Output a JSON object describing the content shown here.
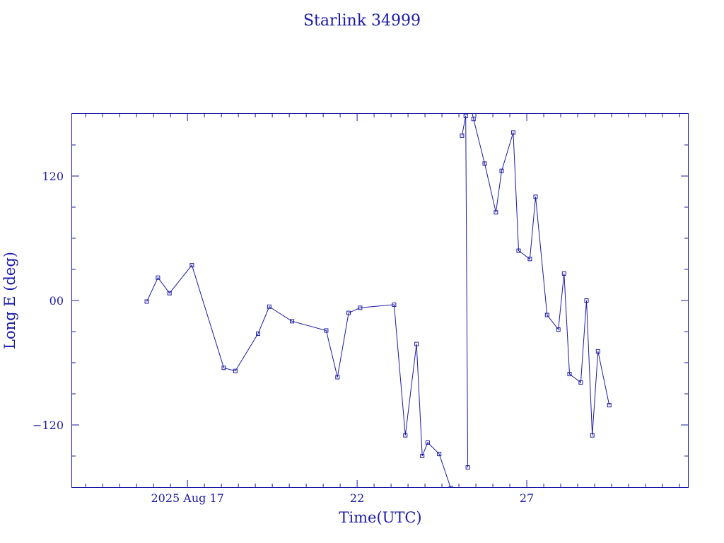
{
  "chart_data": {
    "type": "line",
    "title": "Starlink 34999",
    "xlabel": "Time(UTC)",
    "ylabel": "Long E (deg)",
    "x_tick_labels": [
      {
        "x": 16.0,
        "label": "2025 Aug 17"
      },
      {
        "x": 21.0,
        "label": "22"
      },
      {
        "x": 26.0,
        "label": "27"
      }
    ],
    "y_tick_labels": [
      {
        "y": 120,
        "label": "120"
      },
      {
        "y": 0,
        "label": "00"
      },
      {
        "y": -120,
        "label": "−120"
      }
    ],
    "xlim": [
      12.6,
      30.75
    ],
    "ylim": [
      -180,
      180
    ],
    "x_unit": "days (Aug 2025, UTC)",
    "grid": false,
    "marker": "square",
    "color": "#1a1aa6",
    "points": [
      {
        "x": 14.8,
        "y": -1
      },
      {
        "x": 15.13,
        "y": 22
      },
      {
        "x": 15.47,
        "y": 7
      },
      {
        "x": 16.13,
        "y": 34
      },
      {
        "x": 17.07,
        "y": -65
      },
      {
        "x": 17.41,
        "y": -68
      },
      {
        "x": 18.08,
        "y": -32
      },
      {
        "x": 18.41,
        "y": -6
      },
      {
        "x": 19.08,
        "y": -20
      },
      {
        "x": 20.09,
        "y": -29
      },
      {
        "x": 20.42,
        "y": -74
      },
      {
        "x": 20.75,
        "y": -12
      },
      {
        "x": 21.09,
        "y": -7
      },
      {
        "x": 22.09,
        "y": -4
      },
      {
        "x": 22.42,
        "y": -130
      },
      {
        "x": 22.75,
        "y": -42
      },
      {
        "x": 22.92,
        "y": -150
      },
      {
        "x": 23.08,
        "y": -137
      },
      {
        "x": 23.42,
        "y": -148
      },
      {
        "x": 23.76,
        "y": -181
      },
      {
        "x": 24.09,
        "y": -201
      },
      {
        "x": 24.09,
        "y": 159
      },
      {
        "x": 24.2,
        "y": 178
      },
      {
        "x": 24.26,
        "y": -161
      },
      {
        "x": 24.26,
        "y": 199
      },
      {
        "x": 24.43,
        "y": 175
      },
      {
        "x": 24.76,
        "y": 132
      },
      {
        "x": 25.09,
        "y": 85
      },
      {
        "x": 25.26,
        "y": 125
      },
      {
        "x": 25.6,
        "y": 162
      },
      {
        "x": 25.76,
        "y": 48
      },
      {
        "x": 26.09,
        "y": 40
      },
      {
        "x": 26.26,
        "y": 100
      },
      {
        "x": 26.6,
        "y": -14
      },
      {
        "x": 26.93,
        "y": -28
      },
      {
        "x": 27.1,
        "y": 26
      },
      {
        "x": 27.26,
        "y": -71
      },
      {
        "x": 27.59,
        "y": -79
      },
      {
        "x": 27.76,
        "y": 0
      },
      {
        "x": 27.93,
        "y": -130
      },
      {
        "x": 28.1,
        "y": -49
      },
      {
        "x": 28.43,
        "y": -101
      }
    ]
  }
}
